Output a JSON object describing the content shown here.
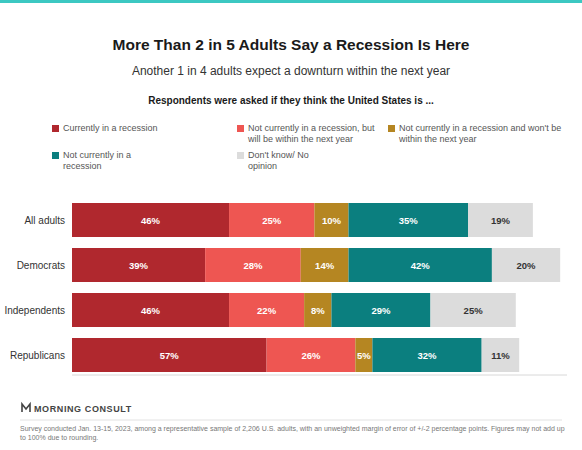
{
  "chart_data": {
    "type": "bar",
    "orientation": "horizontal",
    "stacked": true,
    "data_labels": true,
    "grid": false,
    "tick_labels": "y",
    "legend": "top",
    "title": "More Than 2 in 5 Adults Say a Recession Is Here",
    "subtitle": "Another 1 in 4 adults expect a downturn within the next year",
    "question": "Respondents were asked if they think the United States is ...",
    "categories": [
      "All adults",
      "Democrats",
      "Independents",
      "Republicans"
    ],
    "xlim": [
      0,
      145
    ],
    "series": [
      {
        "name": "Currently in a recession",
        "color": "#b0282e",
        "values": [
          46,
          39,
          46,
          57
        ],
        "value_labels": [
          "46%",
          "39%",
          "46%",
          "57%"
        ]
      },
      {
        "name": "Not currently in a recession, but will be within the next year",
        "color": "#ee5652",
        "values": [
          25,
          28,
          22,
          26
        ],
        "value_labels": [
          "25%",
          "28%",
          "22%",
          "26%"
        ]
      },
      {
        "name": "Not currently in a recession and won't be within the next year",
        "color": "#b58622",
        "values": [
          10,
          14,
          8,
          5
        ],
        "value_labels": [
          "10%",
          "14%",
          "8%",
          "5%"
        ]
      },
      {
        "name": "Not currently in a recession",
        "color": "#0b7f7f",
        "values": [
          35,
          42,
          29,
          32
        ],
        "value_labels": [
          "35%",
          "42%",
          "29%",
          "32%"
        ]
      },
      {
        "name": "Don't know/ No opinion",
        "color": "#dcdcdc",
        "values": [
          19,
          20,
          25,
          11
        ],
        "value_labels": [
          "19%",
          "20%",
          "25%",
          "11%"
        ]
      }
    ],
    "logo": "MORNING CONSULT",
    "note": "Survey conducted Jan. 13-15, 2023, among a representative sample of 2,206 U.S. adults, with an unweighted margin of error of +/-2 percentage points. Figures may not add up to 100% due to rounding."
  }
}
